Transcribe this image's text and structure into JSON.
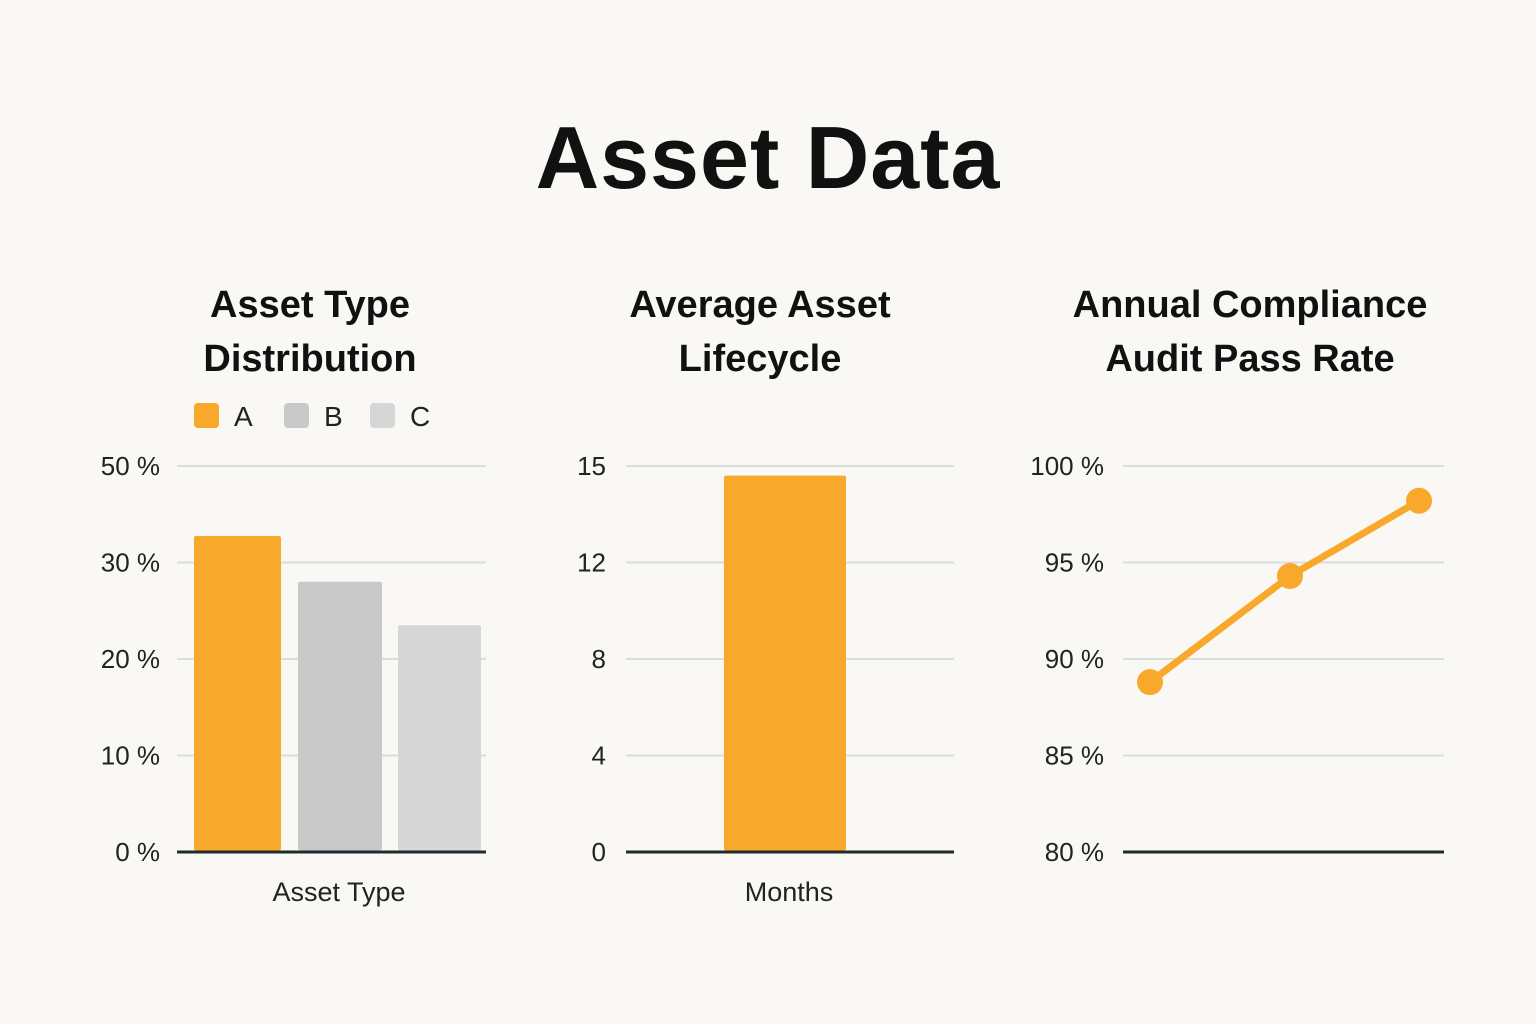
{
  "page": {
    "title": "Asset Data",
    "background": "#f9f8f4"
  },
  "chart_data": [
    {
      "type": "bar",
      "title_lines": [
        "Asset Type",
        "Distribution"
      ],
      "xlabel": "Asset Type",
      "ylabel": "",
      "categories": [
        "A",
        "B",
        "C"
      ],
      "values": [
        35.5,
        28,
        23.5
      ],
      "bar_colors": [
        "#f8a82a",
        "#c9c9ca",
        "#d6d6d7"
      ],
      "legend": [
        {
          "label": "A",
          "color": "#f8a82a"
        },
        {
          "label": "B",
          "color": "#c9c9ca"
        },
        {
          "label": "C",
          "color": "#d6d6d7"
        }
      ],
      "legend_position": "top-left",
      "y_ticks": [
        0,
        10,
        20,
        30,
        50
      ],
      "y_tick_labels": [
        "0 %",
        "10 %",
        "20 %",
        "30 %",
        "50 %"
      ],
      "grid": true
    },
    {
      "type": "bar",
      "title_lines": [
        "Average Asset",
        "Lifecycle"
      ],
      "xlabel": "Months",
      "ylabel": "",
      "categories": [
        ""
      ],
      "values": [
        14.7
      ],
      "bar_colors": [
        "#f8a82a"
      ],
      "y_ticks": [
        0,
        4,
        8,
        12,
        15
      ],
      "y_tick_labels": [
        "0",
        "4",
        "8",
        "12",
        "15"
      ],
      "grid": true
    },
    {
      "type": "line",
      "title_lines": [
        "Annual Compliance",
        "Audit Pass Rate"
      ],
      "xlabel": "",
      "ylabel": "",
      "x": [
        1,
        2,
        3
      ],
      "series": [
        {
          "values": [
            88.8,
            94.3,
            98.2
          ],
          "color": "#f8a82a"
        }
      ],
      "ylim": [
        80,
        100
      ],
      "y_ticks": [
        80,
        85,
        90,
        95,
        100
      ],
      "y_tick_labels": [
        "80 %",
        "85 %",
        "90 %",
        "95 %",
        "100 %"
      ],
      "grid": true
    }
  ]
}
